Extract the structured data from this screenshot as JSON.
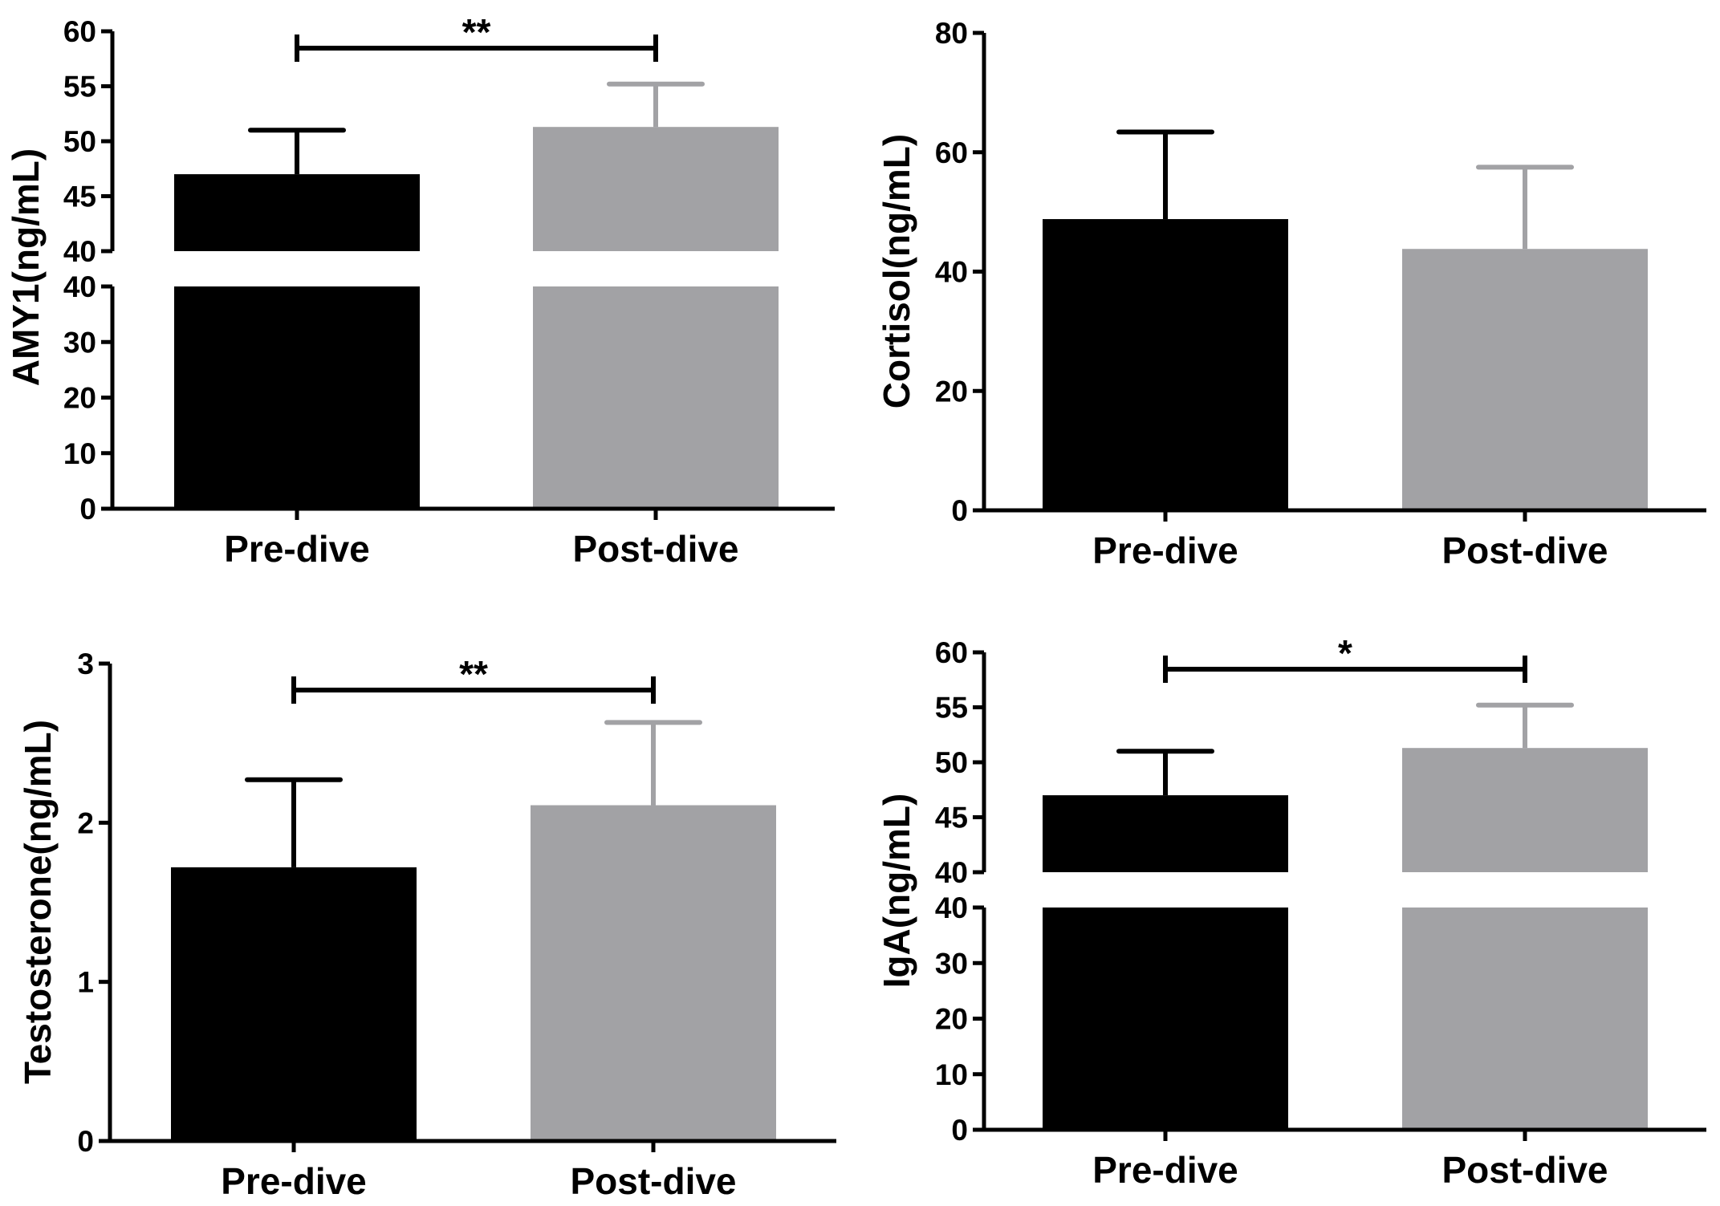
{
  "colors": {
    "pre": "#000000",
    "post": "#a2a2a5",
    "axis": "#000000",
    "background": "#ffffff"
  },
  "chart_data": [
    {
      "id": "amy1",
      "type": "bar",
      "ylabel": "AMY1(ng/mL)",
      "categories": [
        "Pre-dive",
        "Post-dive"
      ],
      "values": [
        47.0,
        51.3
      ],
      "errors": [
        4.0,
        3.9
      ],
      "axis_break": true,
      "lower_segment": {
        "ylim": [
          0,
          40
        ],
        "ticks": [
          0,
          10,
          20,
          30,
          40
        ]
      },
      "upper_segment": {
        "ylim": [
          40,
          60
        ],
        "ticks": [
          40,
          45,
          50,
          55,
          60
        ]
      },
      "significance": {
        "from": 0,
        "to": 1,
        "label": "**"
      }
    },
    {
      "id": "cortisol",
      "type": "bar",
      "ylabel": "Cortisol(ng/mL)",
      "categories": [
        "Pre-dive",
        "Post-dive"
      ],
      "values": [
        48.8,
        43.8
      ],
      "errors": [
        14.6,
        13.7
      ],
      "axis_break": false,
      "ylim": [
        0,
        80
      ],
      "ticks": [
        0,
        20,
        40,
        60,
        80
      ]
    },
    {
      "id": "testosterone",
      "type": "bar",
      "ylabel": "Testosterone(ng/mL)",
      "categories": [
        "Pre-dive",
        "Post-dive"
      ],
      "values": [
        1.72,
        2.11
      ],
      "errors": [
        0.55,
        0.52
      ],
      "axis_break": false,
      "ylim": [
        0,
        3
      ],
      "ticks": [
        0,
        1,
        2,
        3
      ],
      "significance": {
        "from": 0,
        "to": 1,
        "label": "**"
      }
    },
    {
      "id": "iga",
      "type": "bar",
      "ylabel": "IgA(ng/mL)",
      "categories": [
        "Pre-dive",
        "Post-dive"
      ],
      "values": [
        47.0,
        51.3
      ],
      "errors": [
        4.0,
        3.9
      ],
      "axis_break": true,
      "lower_segment": {
        "ylim": [
          0,
          40
        ],
        "ticks": [
          0,
          10,
          20,
          30,
          40
        ]
      },
      "upper_segment": {
        "ylim": [
          40,
          60
        ],
        "ticks": [
          40,
          45,
          50,
          55,
          60
        ]
      },
      "significance": {
        "from": 0,
        "to": 1,
        "label": "*"
      }
    }
  ]
}
